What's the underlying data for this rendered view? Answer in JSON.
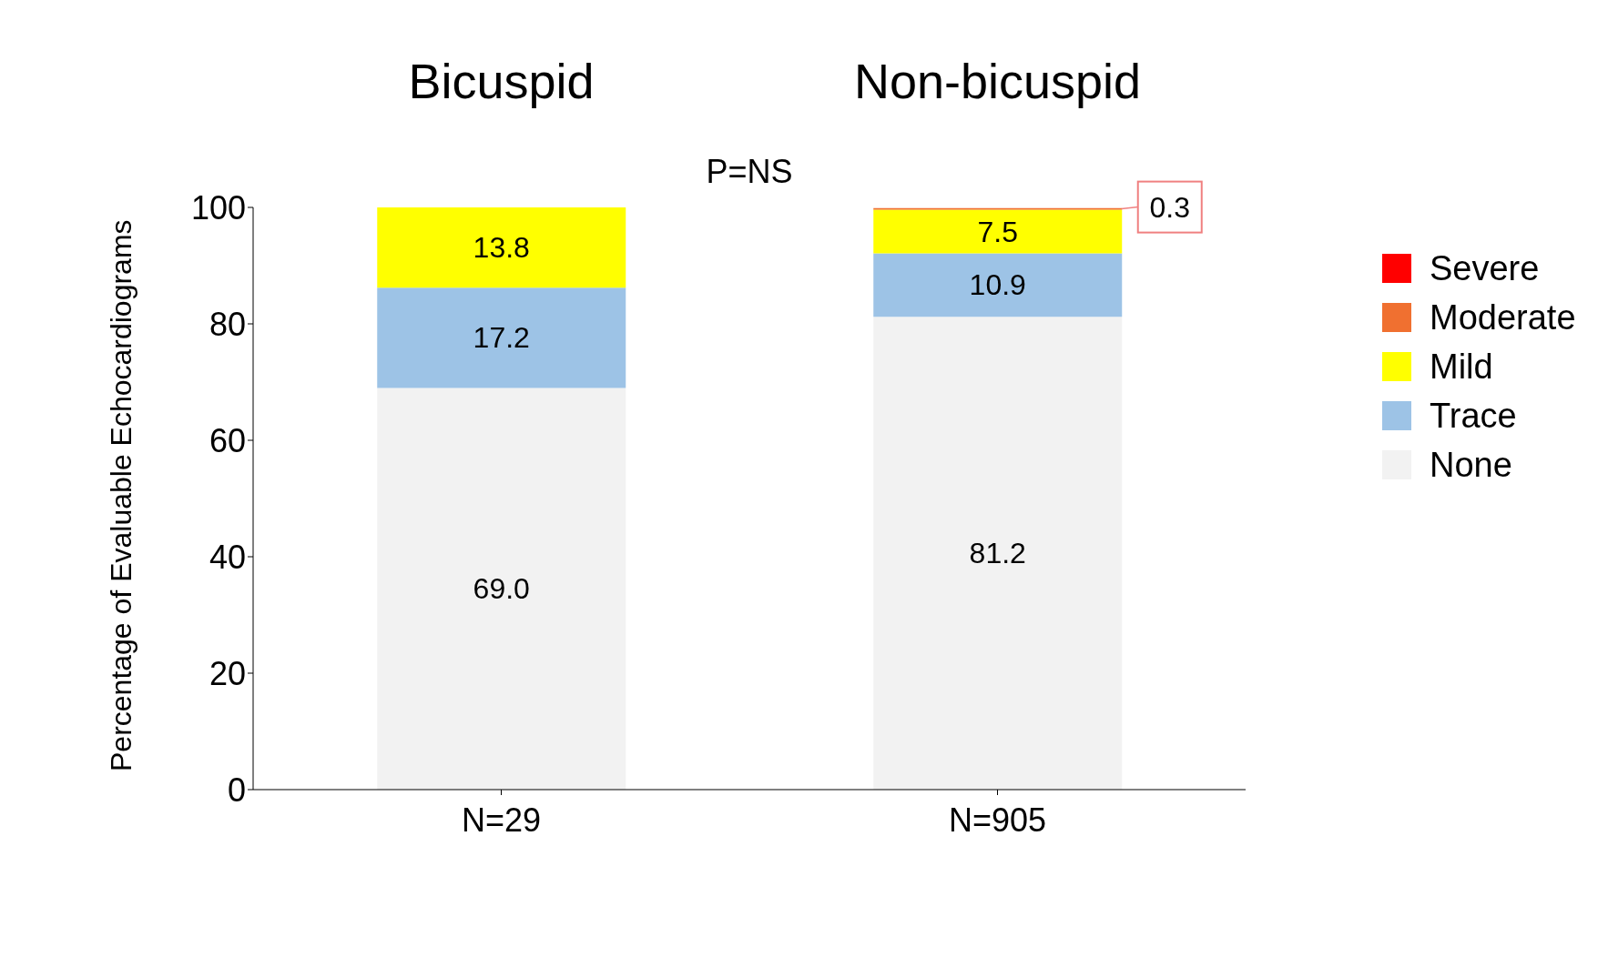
{
  "chart_data": {
    "type": "bar",
    "stacked": true,
    "ylabel": "Percentage of Evaluable Echocardiograms",
    "categories": [
      "N=29",
      "N=905"
    ],
    "series": [
      {
        "name": "None",
        "color": "#f2f2f2",
        "values": [
          69.0,
          81.2
        ],
        "value_labels": [
          "69.0",
          "81.2"
        ]
      },
      {
        "name": "Trace",
        "color": "#9dc3e6",
        "values": [
          17.2,
          10.9
        ],
        "value_labels": [
          "17.2",
          "10.9"
        ]
      },
      {
        "name": "Mild",
        "color": "#ffff00",
        "values": [
          13.8,
          7.5
        ],
        "value_labels": [
          "13.8",
          "7.5"
        ]
      },
      {
        "name": "Moderate",
        "color": "#f07030",
        "values": [
          0,
          0.3
        ],
        "value_labels": [
          null,
          "0.3"
        ]
      },
      {
        "name": "Severe",
        "color": "#ff0000",
        "values": [
          0,
          0
        ],
        "value_labels": [
          null,
          null
        ]
      }
    ],
    "ylim": [
      0,
      100
    ],
    "yticks": [
      0,
      20,
      40,
      60,
      80,
      100
    ],
    "legend": "right",
    "annotations": [
      "Bicuspid",
      "Non-bicuspid",
      "P=NS"
    ]
  }
}
